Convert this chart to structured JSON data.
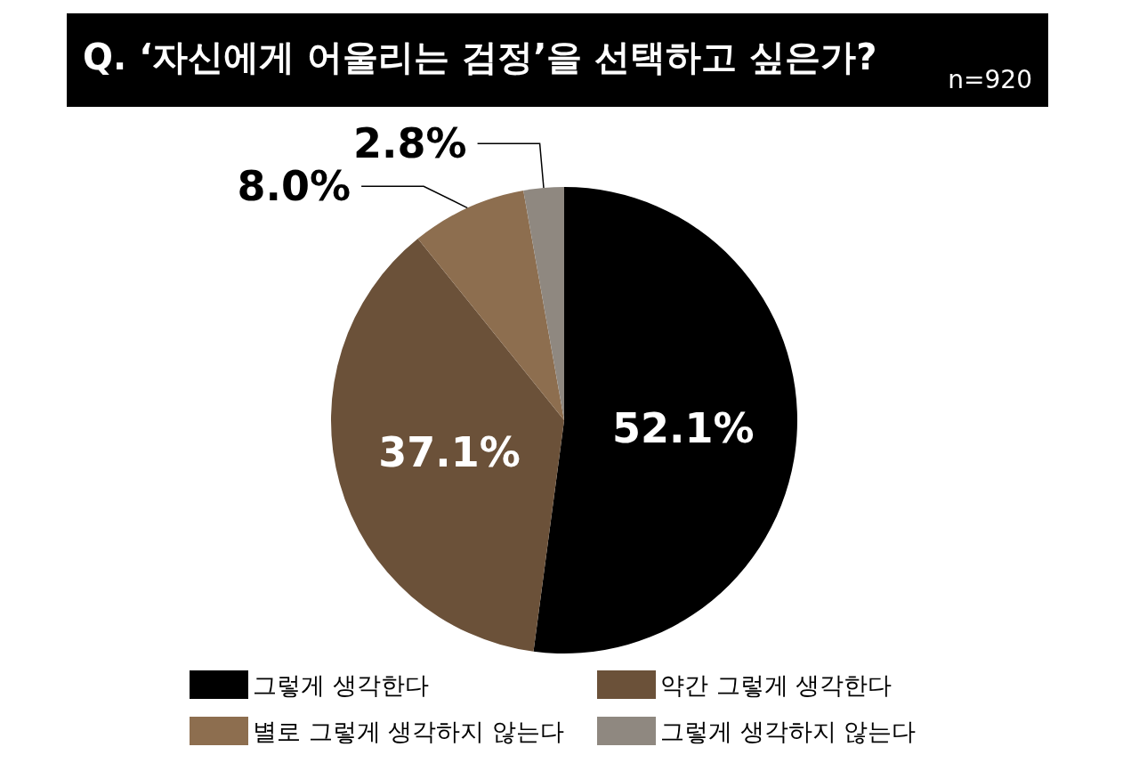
{
  "chart_data": {
    "type": "pie",
    "title": "Q. ‘자신에게 어울리는 검정’을 선택하고 싶은가?",
    "subtitle": "n=920",
    "categories": [
      "그렇게 생각한다",
      "약간 그렇게 생각한다",
      "별로 그렇게 생각하지 않는다",
      "그렇게 생각하지 않는다"
    ],
    "values": [
      52.1,
      37.1,
      8.0,
      2.8
    ],
    "colors": [
      "#000000",
      "#6b5139",
      "#8d6e4f",
      "#8f8880"
    ],
    "value_labels": [
      "52.1%",
      "37.1%",
      "8.0%",
      "2.8%"
    ],
    "legend": "bottom"
  }
}
